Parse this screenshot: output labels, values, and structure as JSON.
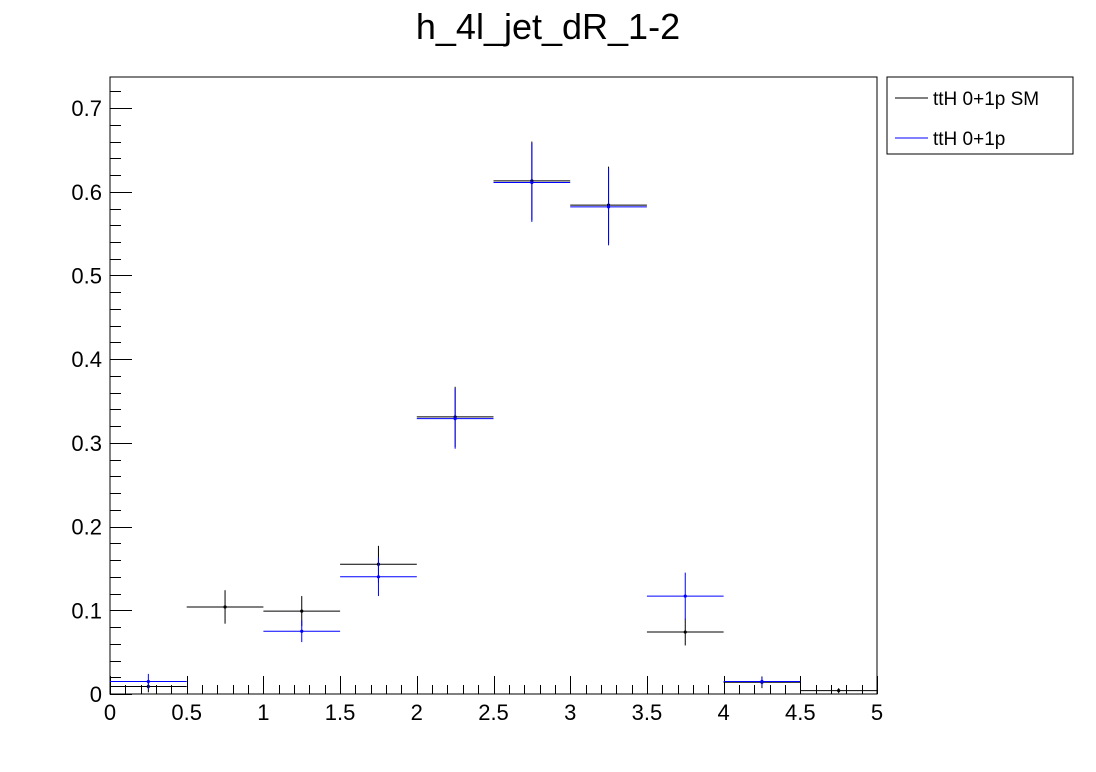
{
  "chart_data": {
    "type": "scatter",
    "title": "h_4l_jet_dR_1-2",
    "xlabel": "",
    "ylabel": "",
    "xlim": [
      0,
      5
    ],
    "ylim": [
      0,
      0.7371
    ],
    "bin_edges": [
      0,
      0.5,
      1,
      1.5,
      2,
      2.5,
      3,
      3.5,
      4,
      4.5,
      5
    ],
    "x_ticks": [
      "0",
      "0.5",
      "1",
      "1.5",
      "2",
      "2.5",
      "3",
      "3.5",
      "4",
      "4.5",
      "5"
    ],
    "y_ticks": [
      "0",
      "0.1",
      "0.2",
      "0.3",
      "0.4",
      "0.5",
      "0.6",
      "0.7"
    ],
    "legend_position": "top-right, outside frame",
    "series": [
      {
        "name": "ttH 0+1p SM",
        "color": "#000000",
        "values": [
          0.009,
          0.104,
          0.099,
          0.155,
          0.331,
          0.613,
          0.584,
          0.074,
          0.014,
          0.004
        ],
        "errors": [
          0.007,
          0.02,
          0.018,
          0.022,
          0.036,
          0.047,
          0.046,
          0.016,
          0.007,
          0.003
        ]
      },
      {
        "name": "ttH 0+1p",
        "color": "#0000ff",
        "values": [
          0.015,
          null,
          0.075,
          0.14,
          0.329,
          0.611,
          0.582,
          0.117,
          0.015,
          null
        ],
        "errors": [
          0.009,
          null,
          0.013,
          0.023,
          0.036,
          0.047,
          0.046,
          0.028,
          0.005,
          null
        ]
      }
    ]
  }
}
